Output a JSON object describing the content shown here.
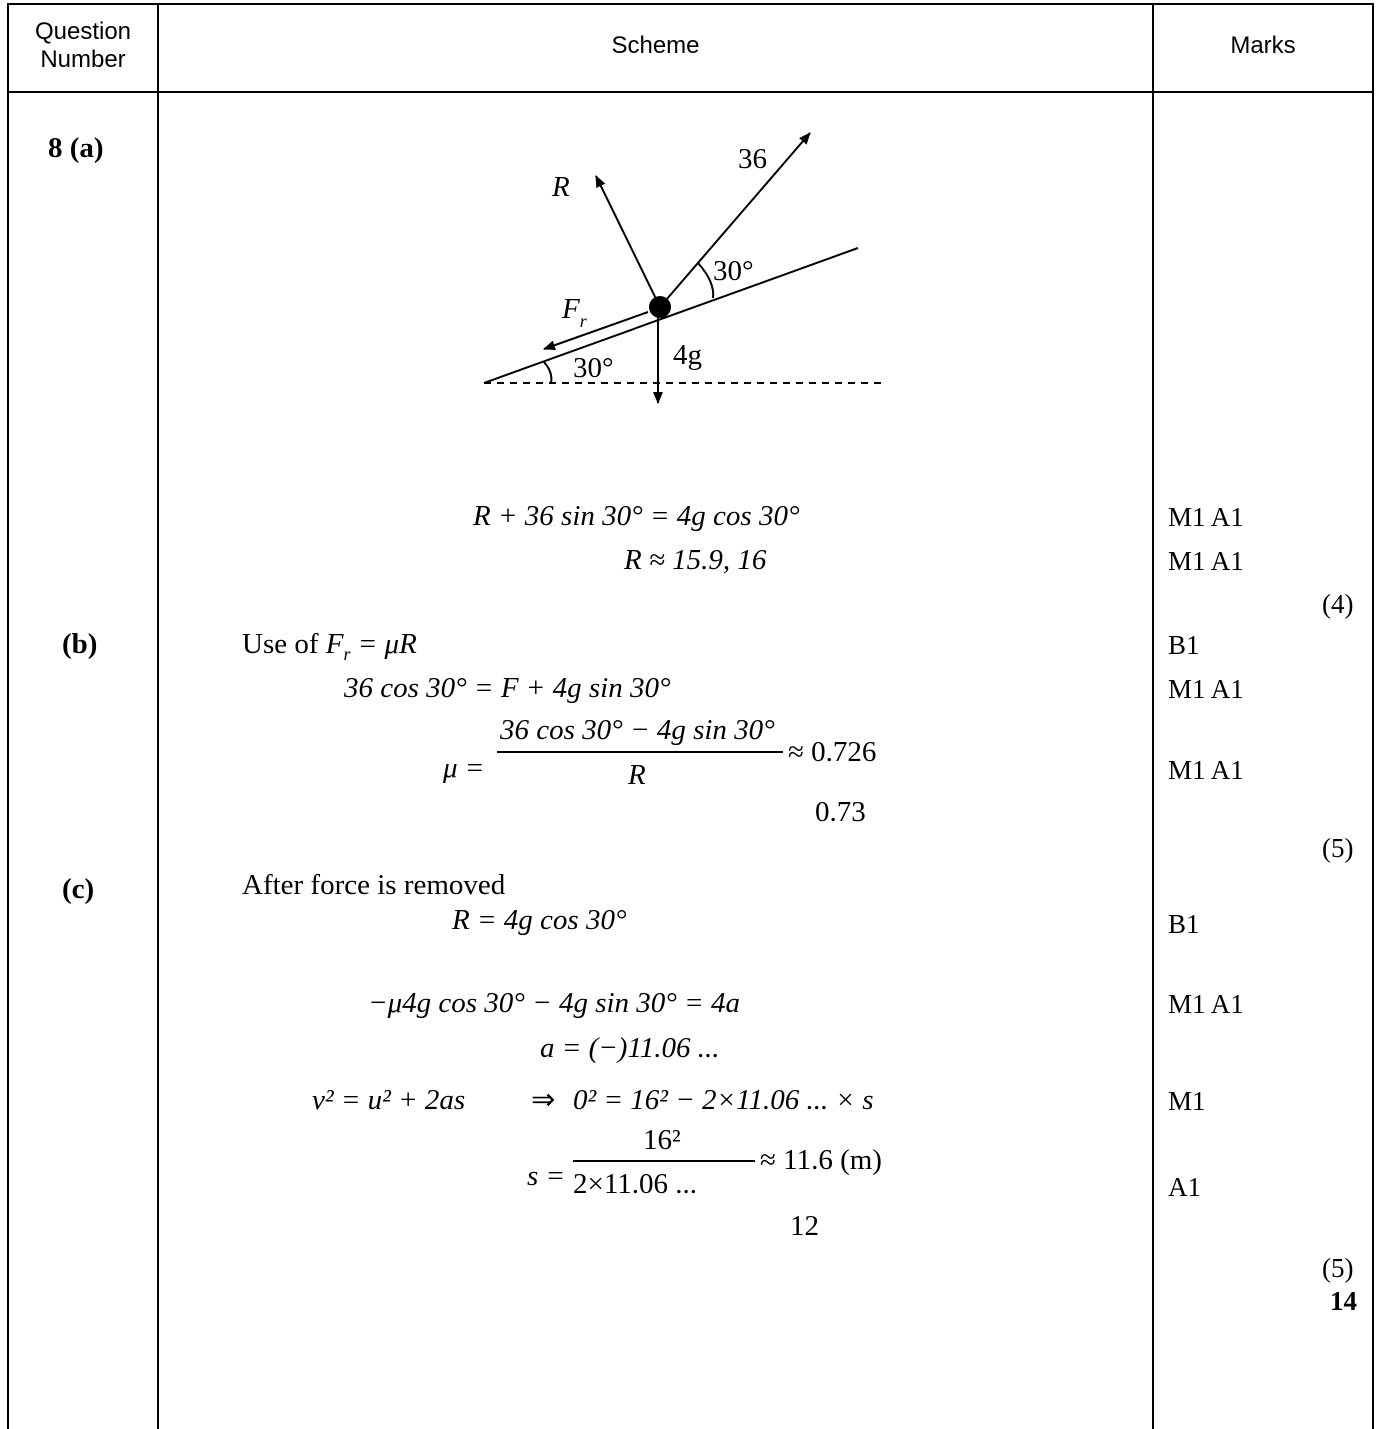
{
  "header": {
    "question_number": "Question Number",
    "scheme": "Scheme",
    "marks": "Marks"
  },
  "diagram": {
    "labels": {
      "R": "R",
      "force": "36",
      "angle_force": "30°",
      "angle_slope": "30°",
      "weight": "4g",
      "friction": "F",
      "friction_sub": "r"
    }
  },
  "parts": {
    "a_label": "8 (a)",
    "b_label": "(b)",
    "c_label": "(c)"
  },
  "lines": {
    "a1": "R + 36 sin 30° = 4g cos 30°",
    "a2": "R ≈ 15.9, 16",
    "b1_prefix": "Use of ",
    "b1_eq": "= μR",
    "b2": "36 cos 30° = F + 4g sin 30°",
    "b3_lhs": "μ =",
    "b3_num": "36 cos 30° − 4g sin 30°",
    "b3_den": "R",
    "b3_rhs": "≈ 0.726",
    "b4": "0.73",
    "c0": "After force is removed",
    "c1": "R = 4g cos 30°",
    "c2": "−μ4g cos 30° − 4g sin 30° = 4a",
    "c3": "a = (−)11.06 ...",
    "c4_left": "v² = u² + 2as",
    "c4_arrow": "⇒",
    "c4_right": "0² = 16² − 2×11.06 ... × s",
    "c5_lhs": "s =",
    "c5_num": "16²",
    "c5_den": "2×11.06 ...",
    "c5_rhs": "≈ 11.6   (m)",
    "c6": "12"
  },
  "marks": {
    "a_m1": "M1 A1",
    "a_m2": "M1 A1",
    "a_total": "(4)",
    "b_m1": "B1",
    "b_m2": "M1 A1",
    "b_m3": "M1 A1",
    "b_total": "(5)",
    "c_m1": "B1",
    "c_m2": "M1  A1",
    "c_m3": "M1",
    "c_m4": "A1",
    "c_total": "(5)",
    "grand_total": "14"
  }
}
